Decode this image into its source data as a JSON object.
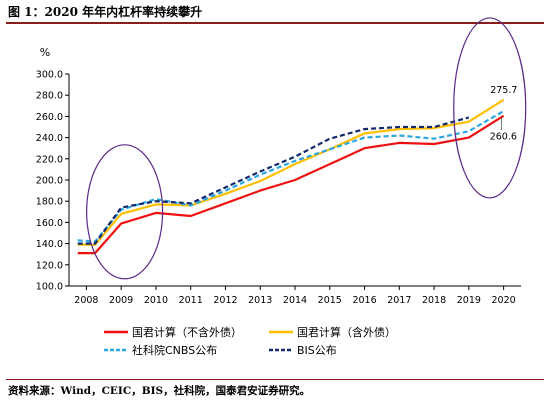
{
  "figure_title": "图 1：2020 年年内杠杆率持续攀升",
  "source_note": "资料来源：Wind，CEIC，BIS，社科院，国泰君安证券研究。",
  "chart_data": {
    "type": "line",
    "ylabel": "%",
    "ylim": [
      100,
      300
    ],
    "yticks": [
      "100.0",
      "120.0",
      "140.0",
      "160.0",
      "180.0",
      "200.0",
      "220.0",
      "240.0",
      "260.0",
      "280.0",
      "300.0"
    ],
    "categories": [
      "2008",
      "2009",
      "2010",
      "2011",
      "2012",
      "2013",
      "2014",
      "2015",
      "2016",
      "2017",
      "2018",
      "2019",
      "2020"
    ],
    "legend_position": "bottom",
    "grid": false,
    "series": [
      {
        "name": "国君计算（不含外债）",
        "color": "#ee1111",
        "style": "solid",
        "points": [
          [
            2007.75,
            131
          ],
          [
            2008.25,
            131
          ],
          [
            2009,
            159
          ],
          [
            2010,
            169
          ],
          [
            2011,
            166
          ],
          [
            2012,
            178
          ],
          [
            2013,
            190
          ],
          [
            2014,
            200
          ],
          [
            2015,
            215
          ],
          [
            2016,
            230
          ],
          [
            2017,
            235
          ],
          [
            2018,
            234
          ],
          [
            2019,
            240
          ],
          [
            2020,
            260.6
          ]
        ]
      },
      {
        "name": "国君计算（含外债）",
        "color": "#ffbf00",
        "style": "solid",
        "points": [
          [
            2007.75,
            139
          ],
          [
            2008.25,
            139
          ],
          [
            2009,
            168
          ],
          [
            2010,
            177
          ],
          [
            2011,
            176
          ],
          [
            2012,
            187
          ],
          [
            2013,
            199
          ],
          [
            2014,
            215
          ],
          [
            2015,
            229
          ],
          [
            2016,
            244
          ],
          [
            2017,
            248
          ],
          [
            2018,
            249
          ],
          [
            2019,
            255
          ],
          [
            2020,
            275.7
          ]
        ]
      },
      {
        "name": "社科院CNBS公布",
        "color": "#2aa6e0",
        "style": "dashed",
        "points": [
          [
            2007.75,
            143
          ],
          [
            2008.25,
            142
          ],
          [
            2009,
            172
          ],
          [
            2010,
            182
          ],
          [
            2011,
            176
          ],
          [
            2012,
            190
          ],
          [
            2013,
            205
          ],
          [
            2014,
            218
          ],
          [
            2015,
            229
          ],
          [
            2016,
            240
          ],
          [
            2017,
            242
          ],
          [
            2018,
            239
          ],
          [
            2019,
            246
          ],
          [
            2020,
            265
          ]
        ]
      },
      {
        "name": "BIS公布",
        "color": "#142a6b",
        "style": "dashed",
        "points": [
          [
            2007.75,
            140
          ],
          [
            2008.25,
            140
          ],
          [
            2009,
            174
          ],
          [
            2010,
            180
          ],
          [
            2011,
            178
          ],
          [
            2012,
            193
          ],
          [
            2013,
            208
          ],
          [
            2014,
            222
          ],
          [
            2015,
            239
          ],
          [
            2016,
            248
          ],
          [
            2017,
            250
          ],
          [
            2018,
            250
          ],
          [
            2019,
            259
          ]
        ]
      }
    ],
    "annotations": [
      "275.7",
      "260.6"
    ]
  }
}
